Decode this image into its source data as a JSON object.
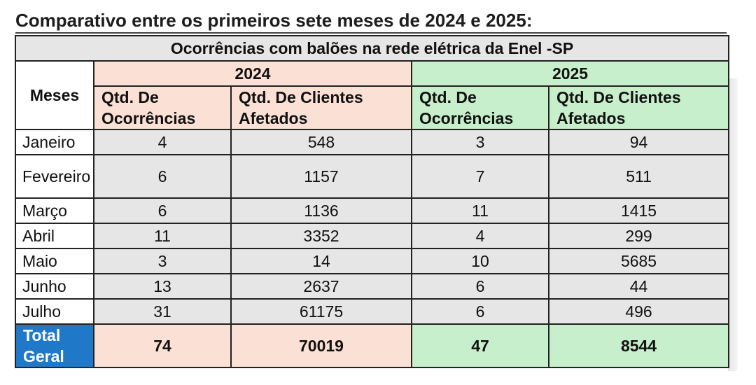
{
  "heading": "Comparativo entre os primeiros sete meses de 2024 e 2025:",
  "table": {
    "title": "Ocorrências com balões na rede elétrica da Enel -SP",
    "months_header": "Meses",
    "years": [
      "2024",
      "2025"
    ],
    "col_occurrences": "Qtd. De Ocorrências",
    "col_clients": "Qtd. De Clientes Afetados",
    "rows": [
      {
        "month": "Janeiro",
        "occ_2024": "4",
        "cli_2024": "548",
        "occ_2025": "3",
        "cli_2025": "94"
      },
      {
        "month": "Fevereiro",
        "occ_2024": "6",
        "cli_2024": "1157",
        "occ_2025": "7",
        "cli_2025": "511"
      },
      {
        "month": "Março",
        "occ_2024": "6",
        "cli_2024": "1136",
        "occ_2025": "11",
        "cli_2025": "1415"
      },
      {
        "month": "Abril",
        "occ_2024": "11",
        "cli_2024": "3352",
        "occ_2025": "4",
        "cli_2025": "299"
      },
      {
        "month": "Maio",
        "occ_2024": "3",
        "cli_2024": "14",
        "occ_2025": "10",
        "cli_2025": "5685"
      },
      {
        "month": "Junho",
        "occ_2024": "13",
        "cli_2024": "2637",
        "occ_2025": "6",
        "cli_2025": "44"
      },
      {
        "month": "Julho",
        "occ_2024": "31",
        "cli_2024": "61175",
        "occ_2025": "6",
        "cli_2025": "496"
      }
    ],
    "total": {
      "label": "Total Geral",
      "occ_2024": "74",
      "cli_2024": "70019",
      "occ_2025": "47",
      "cli_2025": "8544"
    }
  },
  "colors": {
    "year_2024_fill": "#fbe1d5",
    "year_2025_fill": "#c8efcc",
    "data_fill": "#e6e6e6",
    "total_label_fill": "#1f78c8"
  }
}
